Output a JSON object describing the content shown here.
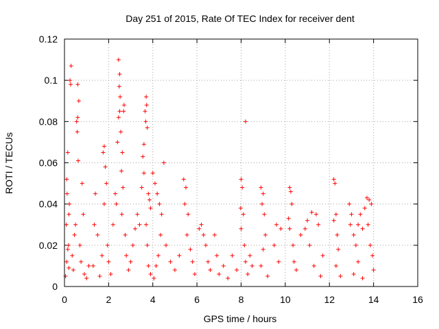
{
  "chart_data": {
    "type": "scatter",
    "title": "Day 251 of 2015, Rate Of TEC Index for receiver dent",
    "xlabel": "GPS time / hours",
    "ylabel": "ROTI / TECUs",
    "xlim": [
      0,
      16
    ],
    "ylim": [
      0,
      0.12
    ],
    "x_ticks": [
      "0",
      "2",
      "4",
      "6",
      "8",
      "10",
      "12",
      "14",
      "16"
    ],
    "y_ticks": [
      "0",
      "0.02",
      "0.04",
      "0.06",
      "0.08",
      "0.1",
      "0.12"
    ],
    "x_tick_values": [
      0,
      2,
      4,
      6,
      8,
      10,
      12,
      14,
      16
    ],
    "y_tick_values": [
      0,
      0.02,
      0.04,
      0.06,
      0.08,
      0.1,
      0.12
    ],
    "grid": true,
    "marker": "+",
    "color": "#ff0000",
    "series": [
      {
        "name": "ROTI",
        "points": [
          [
            0.1,
            0.052
          ],
          [
            0.15,
            0.065
          ],
          [
            0.12,
            0.045
          ],
          [
            0.08,
            0.03
          ],
          [
            0.2,
            0.035
          ],
          [
            0.3,
            0.107
          ],
          [
            0.25,
            0.1
          ],
          [
            0.28,
            0.098
          ],
          [
            0.22,
            0.04
          ],
          [
            0.18,
            0.02
          ],
          [
            0.35,
            0.015
          ],
          [
            0.4,
            0.008
          ],
          [
            0.05,
            0.005
          ],
          [
            0.1,
            0.012
          ],
          [
            0.15,
            0.018
          ],
          [
            0.2,
            0.009
          ],
          [
            0.6,
            0.098
          ],
          [
            0.65,
            0.09
          ],
          [
            0.55,
            0.08
          ],
          [
            0.6,
            0.082
          ],
          [
            0.58,
            0.075
          ],
          [
            0.62,
            0.061
          ],
          [
            0.5,
            0.03
          ],
          [
            0.7,
            0.02
          ],
          [
            0.8,
            0.05
          ],
          [
            0.75,
            0.012
          ],
          [
            0.9,
            0.006
          ],
          [
            1.0,
            0.004
          ],
          [
            1.1,
            0.01
          ],
          [
            0.45,
            0.025
          ],
          [
            0.85,
            0.035
          ],
          [
            1.4,
            0.045
          ],
          [
            1.35,
            0.03
          ],
          [
            1.5,
            0.025
          ],
          [
            1.3,
            0.01
          ],
          [
            1.6,
            0.005
          ],
          [
            1.7,
            0.015
          ],
          [
            1.8,
            0.068
          ],
          [
            1.75,
            0.065
          ],
          [
            1.85,
            0.058
          ],
          [
            1.9,
            0.05
          ],
          [
            1.8,
            0.04
          ],
          [
            1.95,
            0.02
          ],
          [
            2.0,
            0.012
          ],
          [
            2.1,
            0.006
          ],
          [
            2.2,
            0.03
          ],
          [
            2.3,
            0.045
          ],
          [
            2.35,
            0.04
          ],
          [
            2.45,
            0.11
          ],
          [
            2.5,
            0.103
          ],
          [
            2.48,
            0.097
          ],
          [
            2.52,
            0.092
          ],
          [
            2.5,
            0.085
          ],
          [
            2.45,
            0.082
          ],
          [
            2.55,
            0.075
          ],
          [
            2.4,
            0.07
          ],
          [
            2.7,
            0.088
          ],
          [
            2.68,
            0.085
          ],
          [
            2.62,
            0.065
          ],
          [
            2.58,
            0.056
          ],
          [
            2.65,
            0.048
          ],
          [
            2.6,
            0.035
          ],
          [
            2.75,
            0.025
          ],
          [
            2.8,
            0.015
          ],
          [
            2.9,
            0.008
          ],
          [
            3.0,
            0.012
          ],
          [
            3.1,
            0.02
          ],
          [
            3.2,
            0.028
          ],
          [
            3.3,
            0.035
          ],
          [
            3.4,
            0.03
          ],
          [
            3.7,
            0.092
          ],
          [
            3.72,
            0.088
          ],
          [
            3.65,
            0.085
          ],
          [
            3.68,
            0.08
          ],
          [
            3.75,
            0.077
          ],
          [
            3.6,
            0.069
          ],
          [
            3.55,
            0.063
          ],
          [
            3.6,
            0.055
          ],
          [
            3.5,
            0.048
          ],
          [
            3.8,
            0.045
          ],
          [
            3.85,
            0.042
          ],
          [
            3.9,
            0.038
          ],
          [
            3.7,
            0.03
          ],
          [
            3.75,
            0.02
          ],
          [
            3.8,
            0.01
          ],
          [
            3.9,
            0.006
          ],
          [
            4.0,
            0.055
          ],
          [
            4.1,
            0.05
          ],
          [
            4.2,
            0.045
          ],
          [
            4.3,
            0.04
          ],
          [
            4.5,
            0.06
          ],
          [
            4.4,
            0.035
          ],
          [
            4.35,
            0.025
          ],
          [
            4.25,
            0.015
          ],
          [
            4.15,
            0.01
          ],
          [
            4.05,
            0.004
          ],
          [
            4.6,
            0.02
          ],
          [
            4.8,
            0.012
          ],
          [
            5.0,
            0.008
          ],
          [
            5.2,
            0.015
          ],
          [
            5.4,
            0.052
          ],
          [
            5.5,
            0.048
          ],
          [
            5.45,
            0.04
          ],
          [
            5.6,
            0.035
          ],
          [
            5.55,
            0.025
          ],
          [
            5.7,
            0.018
          ],
          [
            5.8,
            0.012
          ],
          [
            5.9,
            0.006
          ],
          [
            6.1,
            0.028
          ],
          [
            6.2,
            0.03
          ],
          [
            6.3,
            0.025
          ],
          [
            6.4,
            0.02
          ],
          [
            6.5,
            0.012
          ],
          [
            6.6,
            0.008
          ],
          [
            6.8,
            0.025
          ],
          [
            6.9,
            0.015
          ],
          [
            7.0,
            0.006
          ],
          [
            7.2,
            0.01
          ],
          [
            7.4,
            0.004
          ],
          [
            7.6,
            0.015
          ],
          [
            7.8,
            0.008
          ],
          [
            8.2,
            0.08
          ],
          [
            8.0,
            0.052
          ],
          [
            8.05,
            0.048
          ],
          [
            7.98,
            0.038
          ],
          [
            8.1,
            0.035
          ],
          [
            8.0,
            0.028
          ],
          [
            8.15,
            0.02
          ],
          [
            8.2,
            0.012
          ],
          [
            8.3,
            0.006
          ],
          [
            8.4,
            0.015
          ],
          [
            8.5,
            0.01
          ],
          [
            8.9,
            0.048
          ],
          [
            9.0,
            0.045
          ],
          [
            8.95,
            0.04
          ],
          [
            9.05,
            0.035
          ],
          [
            9.1,
            0.025
          ],
          [
            9.0,
            0.018
          ],
          [
            8.9,
            0.01
          ],
          [
            9.2,
            0.005
          ],
          [
            9.5,
            0.02
          ],
          [
            9.6,
            0.03
          ],
          [
            9.8,
            0.028
          ],
          [
            9.7,
            0.012
          ],
          [
            10.2,
            0.048
          ],
          [
            10.25,
            0.046
          ],
          [
            10.3,
            0.04
          ],
          [
            10.15,
            0.033
          ],
          [
            10.2,
            0.028
          ],
          [
            10.35,
            0.02
          ],
          [
            10.4,
            0.012
          ],
          [
            10.5,
            0.008
          ],
          [
            10.7,
            0.025
          ],
          [
            10.9,
            0.028
          ],
          [
            11.0,
            0.032
          ],
          [
            11.1,
            0.02
          ],
          [
            11.2,
            0.036
          ],
          [
            11.4,
            0.035
          ],
          [
            11.5,
            0.03
          ],
          [
            11.3,
            0.01
          ],
          [
            11.6,
            0.005
          ],
          [
            11.7,
            0.015
          ],
          [
            12.2,
            0.052
          ],
          [
            12.25,
            0.05
          ],
          [
            12.3,
            0.035
          ],
          [
            12.2,
            0.032
          ],
          [
            12.35,
            0.025
          ],
          [
            12.4,
            0.018
          ],
          [
            12.3,
            0.01
          ],
          [
            12.5,
            0.005
          ],
          [
            12.9,
            0.04
          ],
          [
            13.0,
            0.035
          ],
          [
            12.95,
            0.03
          ],
          [
            13.1,
            0.025
          ],
          [
            13.2,
            0.02
          ],
          [
            13.3,
            0.03
          ],
          [
            13.4,
            0.035
          ],
          [
            13.5,
            0.028
          ],
          [
            13.6,
            0.038
          ],
          [
            13.7,
            0.043
          ],
          [
            13.8,
            0.042
          ],
          [
            13.9,
            0.04
          ],
          [
            13.75,
            0.03
          ],
          [
            13.85,
            0.02
          ],
          [
            13.95,
            0.015
          ],
          [
            14.0,
            0.008
          ],
          [
            13.1,
            0.006
          ],
          [
            13.3,
            0.012
          ],
          [
            13.5,
            0.004
          ]
        ]
      }
    ]
  }
}
